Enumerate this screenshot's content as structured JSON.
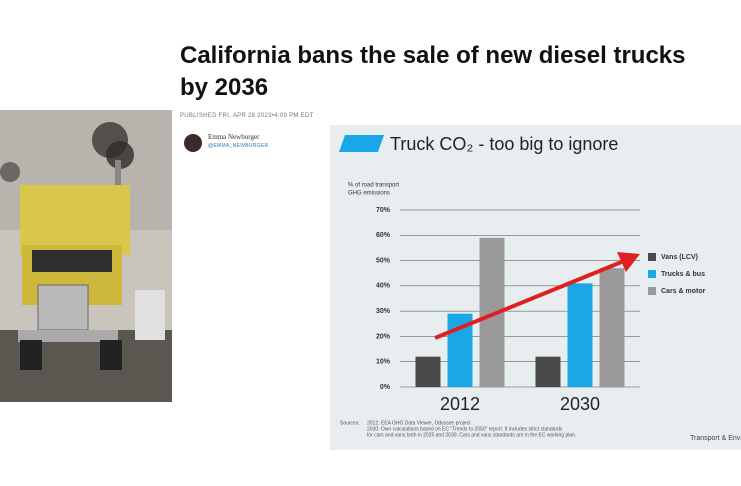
{
  "article": {
    "headline": "California bans the sale of new diesel trucks by 2036",
    "published": "PUBLISHED FRI, APR 28 2023•4:09 PM EDT",
    "author": "Emma Newburger",
    "handle": "@EMMA_NEWBURGER"
  },
  "chart_data": {
    "type": "bar",
    "title": "Truck CO₂ - too big to ignore",
    "y_label": [
      "% of road transport",
      "GHG emissions"
    ],
    "categories": [
      "2012",
      "2030"
    ],
    "series": [
      {
        "name": "Vans (LCV)",
        "color": "#4a4a4a",
        "values": [
          12,
          12
        ]
      },
      {
        "name": "Trucks & bus",
        "color": "#1aa7e8",
        "values": [
          29,
          41
        ]
      },
      {
        "name": "Cars & motor",
        "color": "#9a9a9a",
        "values": [
          59,
          47
        ]
      }
    ],
    "ylim": [
      0,
      70
    ],
    "yticks": [
      {
        "value": 0,
        "label": "0%"
      },
      {
        "value": 10,
        "label": "10%"
      },
      {
        "value": 20,
        "label": "20%"
      },
      {
        "value": 30,
        "label": "30%"
      },
      {
        "value": 40,
        "label": "40%"
      },
      {
        "value": 50,
        "label": "50%"
      },
      {
        "value": 60,
        "label": "60%"
      },
      {
        "value": 70,
        "label": "70%"
      }
    ],
    "grid": true,
    "sources": {
      "label": "Sources:",
      "lines": [
        "2012: EEA GHG Data Viewer, Odyssee project",
        "2030: Own calculations based on EC \"Trends to 2050\" report. It includes strict standards",
        "for cars and vans both in 2025 and 2030. Cars and vans standards are in the EC working plan."
      ]
    },
    "credit": "Transport & Env"
  }
}
